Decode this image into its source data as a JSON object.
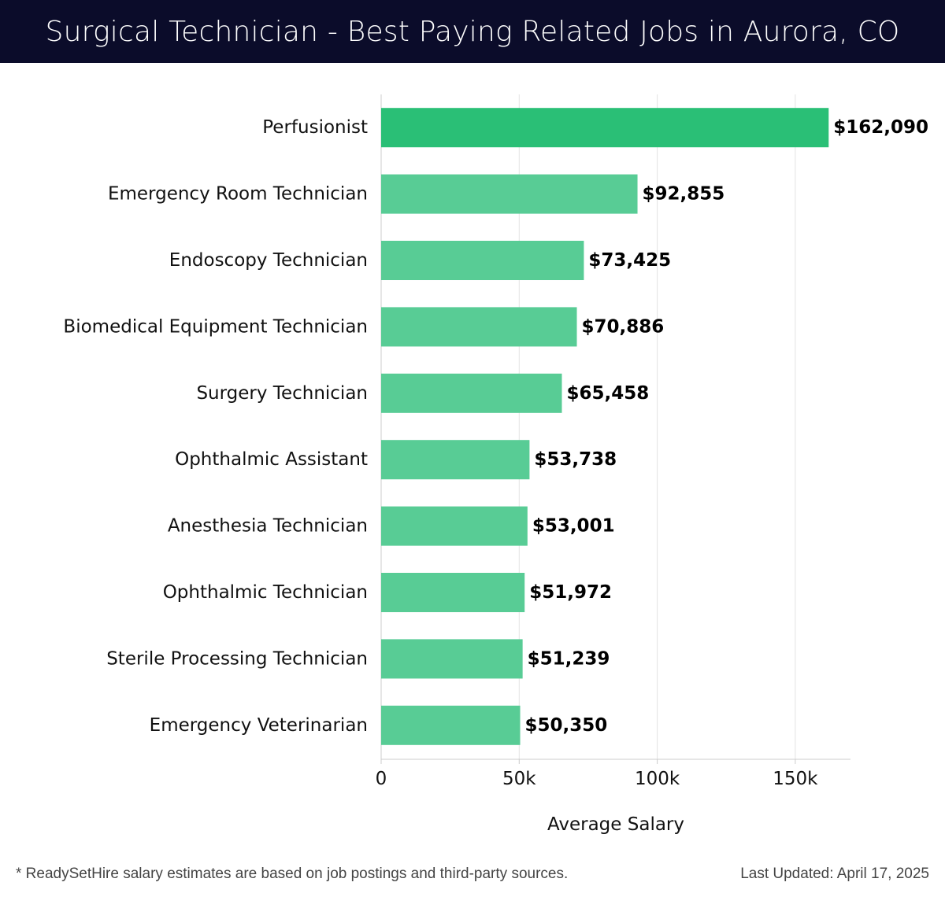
{
  "header": {
    "title": "Surgical Technician - Best Paying Related Jobs in Aurora, CO"
  },
  "chart_data": {
    "type": "bar",
    "orientation": "horizontal",
    "categories": [
      "Perfusionist",
      "Emergency Room Technician",
      "Endoscopy Technician",
      "Biomedical Equipment Technician",
      "Surgery Technician",
      "Ophthalmic Assistant",
      "Anesthesia Technician",
      "Ophthalmic Technician",
      "Sterile Processing Technician",
      "Emergency Veterinarian"
    ],
    "values": [
      162090,
      92855,
      73425,
      70886,
      65458,
      53738,
      53001,
      51972,
      51239,
      50350
    ],
    "data_labels": [
      "$162,090",
      "$92,855",
      "$73,425",
      "$70,886",
      "$65,458",
      "$53,738",
      "$53,001",
      "$51,972",
      "$51,239",
      "$50,350"
    ],
    "xlabel": "Average Salary",
    "ylabel": "",
    "xlim": [
      0,
      170000
    ],
    "xticks": [
      0,
      50000,
      100000,
      150000
    ],
    "xtick_labels": [
      "0",
      "50k",
      "100k",
      "150k"
    ],
    "grid": "vertical",
    "colors": {
      "top_bar": "#2abf76",
      "bar": "#58cc95",
      "grid": "#e3e3e3",
      "axis": "#cccccc",
      "text": "#111111"
    }
  },
  "footer": {
    "note": "* ReadySetHire salary estimates are based on job postings and third-party sources.",
    "updated": "Last Updated: April 17, 2025"
  }
}
